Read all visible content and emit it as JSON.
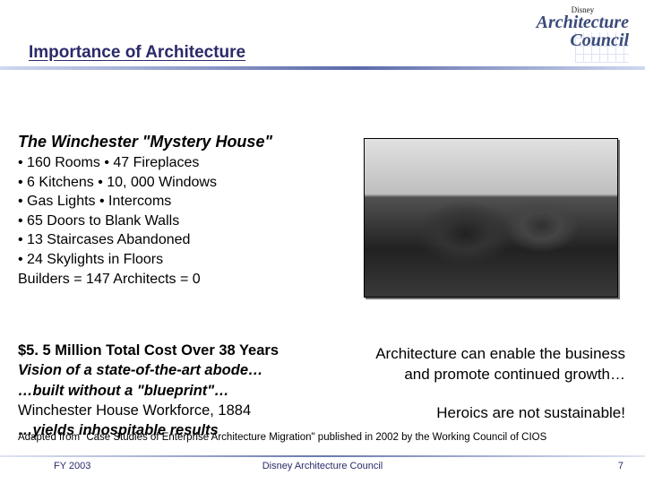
{
  "header": {
    "brand": "Disney",
    "logo_line1": "Architecture",
    "logo_line2": "Council",
    "slide_title": "Importance of Architecture"
  },
  "main": {
    "subtitle": "The Winchester \"Mystery House\"",
    "bullets": [
      "• 160 Rooms • 47 Fireplaces",
      "• 6 Kitchens • 10, 000 Windows",
      "• Gas Lights • Intercoms",
      "• 65 Doors to Blank Walls",
      "• 13 Staircases Abandoned",
      "• 24 Skylights in Floors",
      "Builders = 147 Architects = 0"
    ]
  },
  "lower": {
    "cost": "$5. 5 Million Total Cost Over 38 Years",
    "vision": "Vision of a state-of-the-art abode…",
    "blueprint": "…built without a \"blueprint\"…",
    "workforce": "Winchester House Workforce, 1884",
    "yields": "…yields inhospitable results",
    "enable": "Architecture can enable the business and promote continued growth…",
    "heroics": "Heroics are not sustainable!"
  },
  "citation": "Adapted from \"Case Studies of Enterprise Architecture Migration\" published in 2002 by the Working Council of CIOS",
  "footer": {
    "left": "FY 2003",
    "center": "Disney Architecture Council",
    "page": "7"
  },
  "colors": {
    "title": "#2a2a6a",
    "rule_mid": "#5a6aa8",
    "text": "#000000"
  }
}
